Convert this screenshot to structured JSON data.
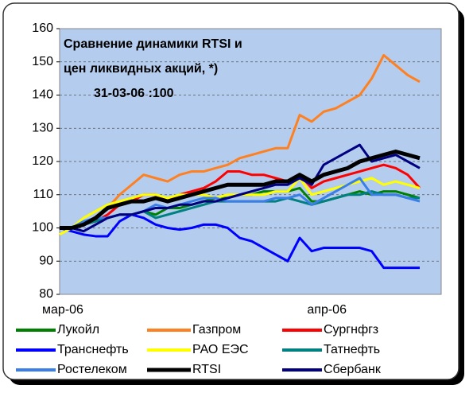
{
  "chart_data": {
    "type": "line",
    "title": [
      "Сравнение динамики RTSI и",
      "цен ликвидных акций, *)"
    ],
    "subtitle": "31-03-06 :100",
    "categories": [
      "мар-06",
      null,
      null,
      null,
      null,
      null,
      null,
      null,
      null,
      null,
      null,
      null,
      null,
      null,
      null,
      null,
      null,
      null,
      null,
      null,
      null,
      null,
      "апр-06",
      null,
      null,
      null,
      null,
      null,
      null,
      null,
      null
    ],
    "series": [
      {
        "name": "Лукойл",
        "color": "#008000",
        "values": [
          100,
          100,
          101,
          102,
          103,
          104,
          104,
          105,
          104,
          106,
          106,
          107,
          108,
          109,
          109,
          110,
          110,
          111,
          111,
          111,
          112,
          108,
          108,
          109,
          110,
          111,
          110,
          111,
          111,
          110,
          109
        ]
      },
      {
        "name": "Газпром",
        "color": "#ff8020",
        "values": [
          100,
          100,
          101,
          103,
          106,
          110,
          113,
          116,
          115,
          114,
          116,
          117,
          117,
          118,
          119,
          121,
          122,
          123,
          124,
          124,
          134,
          132,
          135,
          136,
          138,
          140,
          145,
          152,
          149,
          146,
          144
        ]
      },
      {
        "name": "Сургнфгз",
        "color": "#ff0000",
        "values": [
          100,
          100,
          101,
          102,
          104,
          107,
          108,
          110,
          110,
          108,
          110,
          111,
          112,
          114,
          117,
          117,
          116,
          116,
          115,
          114,
          116,
          112,
          114,
          115,
          116,
          117,
          118,
          119,
          118,
          116,
          112
        ]
      },
      {
        "name": "Транснефть",
        "color": "#0000ff",
        "values": [
          100,
          99,
          98,
          97.5,
          97.5,
          102,
          104,
          103,
          101,
          100,
          99.5,
          100,
          101,
          101,
          100,
          97,
          96,
          94,
          92,
          90,
          97,
          93,
          94,
          94,
          94,
          94,
          93,
          88,
          88,
          88,
          88
        ]
      },
      {
        "name": "РАО ЕЭС",
        "color": "#ffff00",
        "values": [
          98,
          100,
          103,
          105,
          107,
          108,
          109,
          110,
          110,
          109,
          110,
          110,
          110,
          109,
          110,
          110,
          110,
          110,
          111,
          111,
          115,
          110,
          111,
          112,
          113,
          114,
          115,
          113,
          114,
          113,
          112
        ]
      },
      {
        "name": "Татнефть",
        "color": "#008080",
        "values": [
          100,
          100,
          101,
          102,
          103,
          104,
          104,
          105,
          103,
          104,
          105,
          106,
          107,
          108,
          108,
          108,
          108,
          108,
          108,
          109,
          108,
          107,
          108,
          109,
          110,
          110,
          111,
          110,
          110,
          109,
          109
        ]
      },
      {
        "name": "Ростелеком",
        "color": "#3a7ee8",
        "values": [
          100,
          100,
          102,
          103,
          103,
          104,
          104,
          105,
          107,
          106,
          107,
          108,
          109,
          109,
          108,
          108,
          108,
          108,
          109,
          109,
          110,
          107,
          109,
          111,
          113,
          115,
          110,
          110,
          110,
          109,
          108
        ]
      },
      {
        "name": "RTSI",
        "color": "#000000",
        "values": [
          100,
          100,
          101,
          103,
          106,
          107,
          108,
          108,
          109,
          108,
          109,
          110,
          111,
          112,
          113,
          113,
          113,
          113,
          114,
          114,
          116,
          114,
          116,
          117,
          118,
          120,
          121,
          122,
          123,
          122,
          121
        ]
      },
      {
        "name": "Сбербанк",
        "color": "#000080",
        "values": [
          100,
          100,
          99,
          101,
          103,
          104,
          104,
          105,
          106,
          106,
          107,
          107,
          108,
          108,
          109,
          110,
          111,
          112,
          113,
          113,
          115,
          113,
          119,
          121,
          123,
          125,
          120,
          121,
          122,
          120,
          118
        ]
      }
    ],
    "ylim": [
      80,
      160
    ],
    "yticks": [
      80,
      90,
      100,
      110,
      120,
      130,
      140,
      150,
      160
    ],
    "grid": true,
    "legend": "bottom"
  }
}
